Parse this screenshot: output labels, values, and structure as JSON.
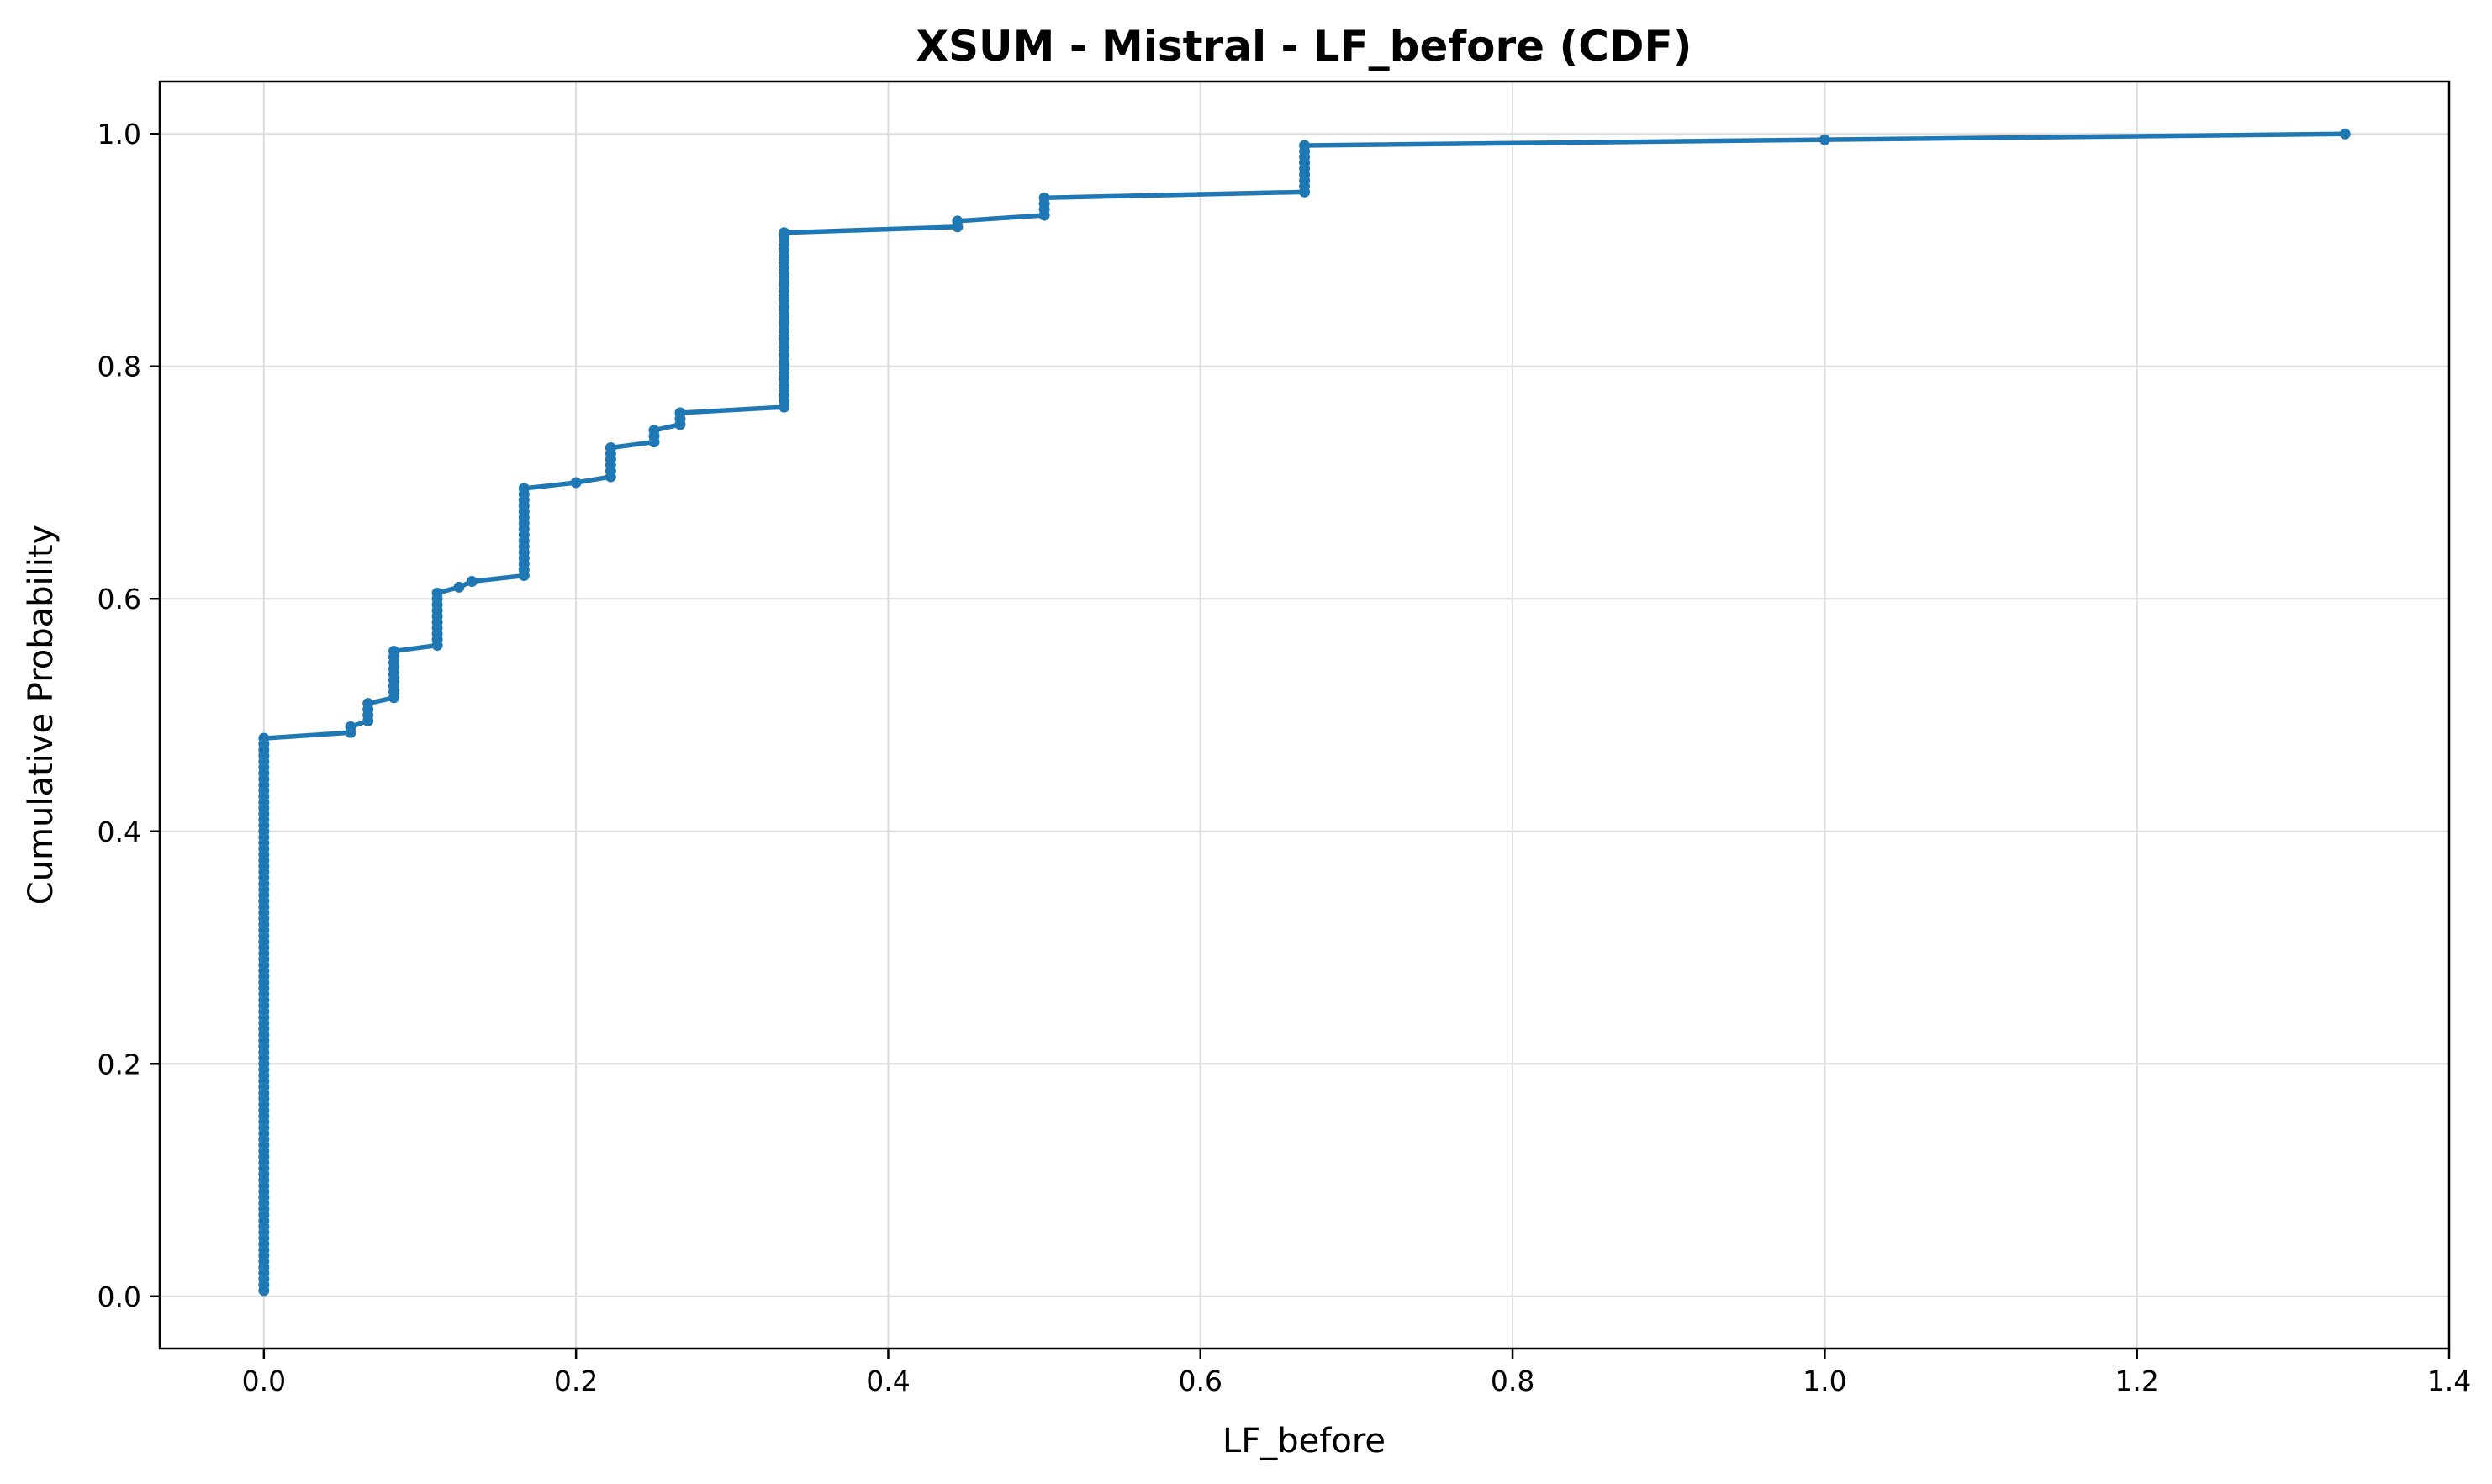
{
  "chart_data": {
    "type": "line",
    "title": "XSUM - Mistral - LF_before (CDF)",
    "xlabel": "LF_before",
    "ylabel": "Cumulative Probability",
    "xlim": [
      -0.0667,
      1.4
    ],
    "ylim": [
      -0.045,
      1.045
    ],
    "xticks": [
      0.0,
      0.2,
      0.4,
      0.6,
      0.8,
      1.0,
      1.2,
      1.4
    ],
    "xtick_labels": [
      "0.0",
      "0.2",
      "0.4",
      "0.6",
      "0.8",
      "1.0",
      "1.2",
      "1.4"
    ],
    "yticks": [
      0.0,
      0.2,
      0.4,
      0.6,
      0.8,
      1.0
    ],
    "ytick_labels": [
      "0.0",
      "0.2",
      "0.4",
      "0.6",
      "0.8",
      "1.0"
    ],
    "grid": true,
    "line_color": "#1f77b4",
    "sample_count": 200,
    "steps": [
      {
        "x": 0.0,
        "y_from": 0.005,
        "y_to": 0.48
      },
      {
        "x": 0.0556,
        "y_from": 0.485,
        "y_to": 0.49
      },
      {
        "x": 0.0667,
        "y_from": 0.495,
        "y_to": 0.51
      },
      {
        "x": 0.0833,
        "y_from": 0.515,
        "y_to": 0.555
      },
      {
        "x": 0.1111,
        "y_from": 0.56,
        "y_to": 0.605
      },
      {
        "x": 0.125,
        "y_from": 0.61,
        "y_to": 0.61
      },
      {
        "x": 0.1333,
        "y_from": 0.615,
        "y_to": 0.615
      },
      {
        "x": 0.1667,
        "y_from": 0.62,
        "y_to": 0.695
      },
      {
        "x": 0.2,
        "y_from": 0.7,
        "y_to": 0.7
      },
      {
        "x": 0.2222,
        "y_from": 0.705,
        "y_to": 0.73
      },
      {
        "x": 0.25,
        "y_from": 0.735,
        "y_to": 0.745
      },
      {
        "x": 0.2667,
        "y_from": 0.75,
        "y_to": 0.76
      },
      {
        "x": 0.3333,
        "y_from": 0.765,
        "y_to": 0.915
      },
      {
        "x": 0.4444,
        "y_from": 0.92,
        "y_to": 0.925
      },
      {
        "x": 0.5,
        "y_from": 0.93,
        "y_to": 0.945
      },
      {
        "x": 0.6667,
        "y_from": 0.95,
        "y_to": 0.99
      },
      {
        "x": 1.0,
        "y_from": 0.995,
        "y_to": 0.995
      },
      {
        "x": 1.3333,
        "y_from": 1.0,
        "y_to": 1.0
      }
    ]
  }
}
